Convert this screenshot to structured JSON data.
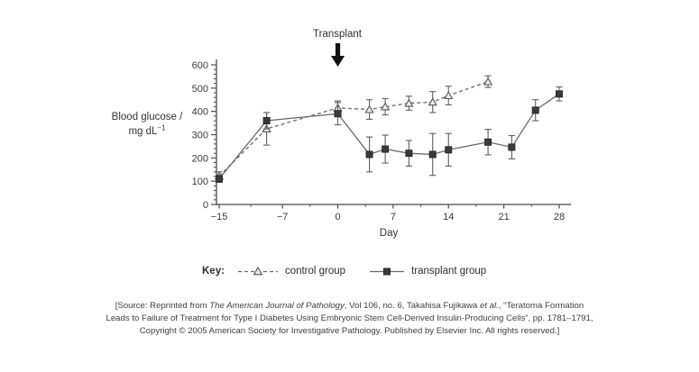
{
  "figure": {
    "annotation": "Transplant",
    "xlabel": "Day",
    "ylabel_line1": "Blood glucose /",
    "ylabel_line2_base": "mg dL",
    "ylabel_line2_sup": "−1"
  },
  "key": {
    "title": "Key:",
    "items": [
      {
        "label": "control group",
        "marker": "open-triangle",
        "line": "dashed"
      },
      {
        "label": "transplant group",
        "marker": "filled-square",
        "line": "solid"
      }
    ]
  },
  "citation": {
    "lines": [
      [
        {
          "text": "[Source: Reprinted from ",
          "italic": false
        },
        {
          "text": "The American Journal of Pathology",
          "italic": true
        },
        {
          "text": ", Vol 106, no. 6, Takahisa Fujikawa ",
          "italic": false
        },
        {
          "text": "et al.",
          "italic": true
        },
        {
          "text": ", “Teratoma Formation",
          "italic": false
        }
      ],
      [
        {
          "text": "Leads to Failure of Treatment for Type I Diabetes Using Embryonic Stem Cell-Derived Insulin-Producing Cells”, pp. 1781–1791,",
          "italic": false
        }
      ],
      [
        {
          "text": "Copyright © 2005 American Society for Investigative Pathology. Published by Elsevier Inc. All rights reserved.]",
          "italic": false
        }
      ]
    ]
  },
  "chart_data": {
    "type": "line",
    "title": "",
    "xlabel": "Day",
    "ylabel": "Blood glucose / mg dL⁻¹",
    "xlim": [
      -15,
      28
    ],
    "ylim": [
      0,
      600
    ],
    "x_ticks": [
      -15,
      -7,
      0,
      7,
      14,
      21,
      28
    ],
    "y_ticks": [
      0,
      100,
      200,
      300,
      400,
      500,
      600
    ],
    "y_minor_step": 20,
    "grid": false,
    "legend_position": "bottom",
    "annotation": {
      "text": "Transplant",
      "x": 0
    },
    "series": [
      {
        "name": "control group",
        "marker": "open-triangle",
        "line_style": "dashed",
        "x": [
          -15,
          -9,
          0,
          4,
          6,
          9,
          12,
          14,
          19
        ],
        "y": [
          122,
          325,
          415,
          408,
          420,
          435,
          440,
          468,
          528
        ],
        "y_err": [
          18,
          70,
          30,
          42,
          35,
          30,
          45,
          40,
          25
        ]
      },
      {
        "name": "transplant group",
        "marker": "filled-square",
        "line_style": "solid",
        "x": [
          -15,
          -9,
          0,
          4,
          6,
          9,
          12,
          14,
          19,
          22,
          25,
          28
        ],
        "y": [
          110,
          360,
          390,
          215,
          238,
          220,
          215,
          235,
          268,
          246,
          405,
          475
        ],
        "y_err": [
          15,
          35,
          48,
          75,
          60,
          55,
          90,
          70,
          55,
          50,
          45,
          30
        ]
      }
    ]
  },
  "colors": {
    "line": "#6a6a6a",
    "error_bar": "#5f5f5f",
    "square_fill": "#3a3a3a",
    "square_stroke": "#2a2a2a",
    "triangle_fill": "#ededed",
    "triangle_stroke": "#565656",
    "axis": "#4a4a4a",
    "tick_text": "#3a3a3a",
    "arrow": "#121212"
  }
}
